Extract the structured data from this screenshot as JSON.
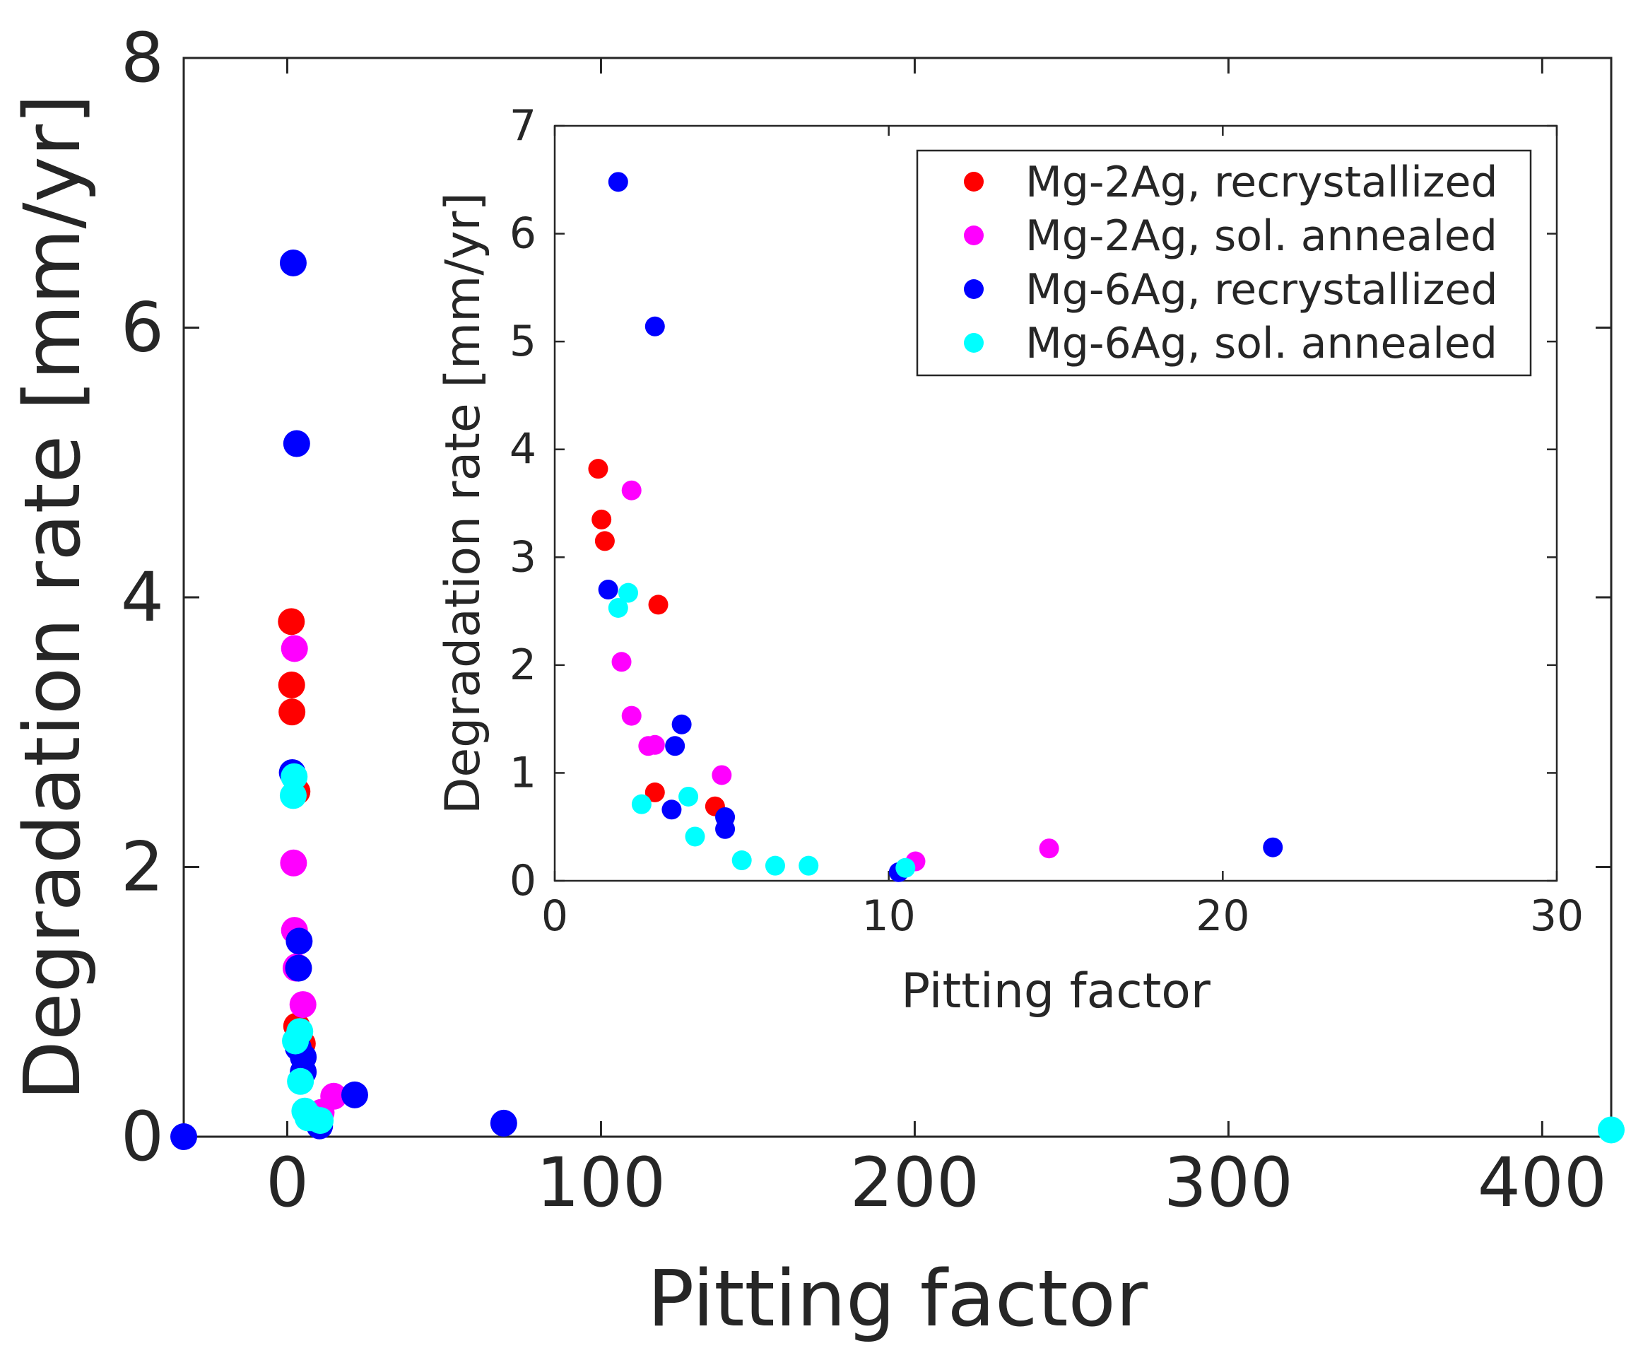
{
  "colors": {
    "Mg-2Ag, recrystallized": "#ff0000",
    "Mg-2Ag, sol. annealed": "#ff00ff",
    "Mg-6Ag, recrystallized": "#0000ff",
    "Mg-6Ag, sol. annealed": "#00ffff",
    "axis": "#262626",
    "background": "#ffffff"
  },
  "chart_data": [
    {
      "id": "main",
      "type": "scatter",
      "title": "",
      "xlabel": "Pitting factor",
      "ylabel": "Degradation rate [mm/yr]",
      "xlim": [
        -33,
        422
      ],
      "ylim": [
        0,
        8
      ],
      "xticks": [
        0,
        100,
        200,
        300,
        400
      ],
      "yticks": [
        0,
        2,
        4,
        6,
        8
      ],
      "xtick_labels": [
        "0",
        "100",
        "200",
        "300",
        "400"
      ],
      "ytick_labels": [
        "0",
        "2",
        "4",
        "6",
        "8"
      ],
      "grid": false,
      "legend": null,
      "series": [
        {
          "name": "Mg-2Ag, recrystallized",
          "points": [
            [
              1.3,
              3.82
            ],
            [
              1.4,
              3.35
            ],
            [
              1.5,
              3.15
            ],
            [
              3.1,
              2.56
            ],
            [
              3.0,
              0.82
            ],
            [
              4.8,
              0.69
            ]
          ]
        },
        {
          "name": "Mg-2Ag, sol. annealed",
          "points": [
            [
              2.3,
              3.62
            ],
            [
              2.0,
              2.03
            ],
            [
              2.3,
              1.53
            ],
            [
              2.8,
              1.25
            ],
            [
              3.0,
              1.26
            ],
            [
              5.0,
              0.98
            ],
            [
              10.8,
              0.18
            ],
            [
              14.8,
              0.3
            ]
          ]
        },
        {
          "name": "Mg-6Ag, recrystallized",
          "points": [
            [
              1.9,
              6.48
            ],
            [
              3.0,
              5.14
            ],
            [
              1.6,
              2.7
            ],
            [
              3.8,
              1.45
            ],
            [
              3.6,
              1.25
            ],
            [
              3.5,
              0.66
            ],
            [
              5.1,
              0.59
            ],
            [
              5.1,
              0.48
            ],
            [
              10.3,
              0.08
            ],
            [
              21.5,
              0.31
            ],
            [
              69,
              0.1
            ],
            [
              -33,
              0
            ]
          ]
        },
        {
          "name": "Mg-6Ag, sol. annealed",
          "points": [
            [
              2.2,
              2.67
            ],
            [
              1.9,
              2.53
            ],
            [
              4.0,
              0.78
            ],
            [
              2.6,
              0.71
            ],
            [
              4.2,
              0.41
            ],
            [
              5.6,
              0.19
            ],
            [
              6.6,
              0.14
            ],
            [
              7.6,
              0.14
            ],
            [
              10.5,
              0.12
            ],
            [
              422,
              0.05
            ]
          ]
        }
      ]
    },
    {
      "id": "inset",
      "type": "scatter",
      "title": "",
      "xlabel": "Pitting factor",
      "ylabel": "Degradation rate [mm/yr]",
      "xlim": [
        0,
        30
      ],
      "ylim": [
        0,
        7
      ],
      "xticks": [
        0,
        10,
        20,
        30
      ],
      "yticks": [
        0,
        1,
        2,
        3,
        4,
        5,
        6,
        7
      ],
      "xtick_labels": [
        "0",
        "10",
        "20",
        "30"
      ],
      "ytick_labels": [
        "0",
        "1",
        "2",
        "3",
        "4",
        "5",
        "6",
        "7"
      ],
      "grid": false,
      "legend": "top-right",
      "series": [
        {
          "name": "Mg-2Ag, recrystallized",
          "points": [
            [
              1.3,
              3.82
            ],
            [
              1.4,
              3.35
            ],
            [
              1.5,
              3.15
            ],
            [
              3.1,
              2.56
            ],
            [
              3.0,
              0.82
            ],
            [
              4.8,
              0.69
            ]
          ]
        },
        {
          "name": "Mg-2Ag, sol. annealed",
          "points": [
            [
              2.3,
              3.62
            ],
            [
              2.0,
              2.03
            ],
            [
              2.3,
              1.53
            ],
            [
              2.8,
              1.25
            ],
            [
              3.0,
              1.26
            ],
            [
              5.0,
              0.98
            ],
            [
              10.8,
              0.18
            ],
            [
              14.8,
              0.3
            ]
          ]
        },
        {
          "name": "Mg-6Ag, recrystallized",
          "points": [
            [
              1.9,
              6.48
            ],
            [
              3.0,
              5.14
            ],
            [
              1.6,
              2.7
            ],
            [
              3.8,
              1.45
            ],
            [
              3.6,
              1.25
            ],
            [
              3.5,
              0.66
            ],
            [
              5.1,
              0.59
            ],
            [
              5.1,
              0.48
            ],
            [
              10.3,
              0.08
            ],
            [
              21.5,
              0.31
            ]
          ]
        },
        {
          "name": "Mg-6Ag, sol. annealed",
          "points": [
            [
              2.2,
              2.67
            ],
            [
              1.9,
              2.53
            ],
            [
              4.0,
              0.78
            ],
            [
              2.6,
              0.71
            ],
            [
              4.2,
              0.41
            ],
            [
              5.6,
              0.19
            ],
            [
              6.6,
              0.14
            ],
            [
              7.6,
              0.14
            ],
            [
              10.5,
              0.12
            ]
          ]
        }
      ]
    }
  ]
}
